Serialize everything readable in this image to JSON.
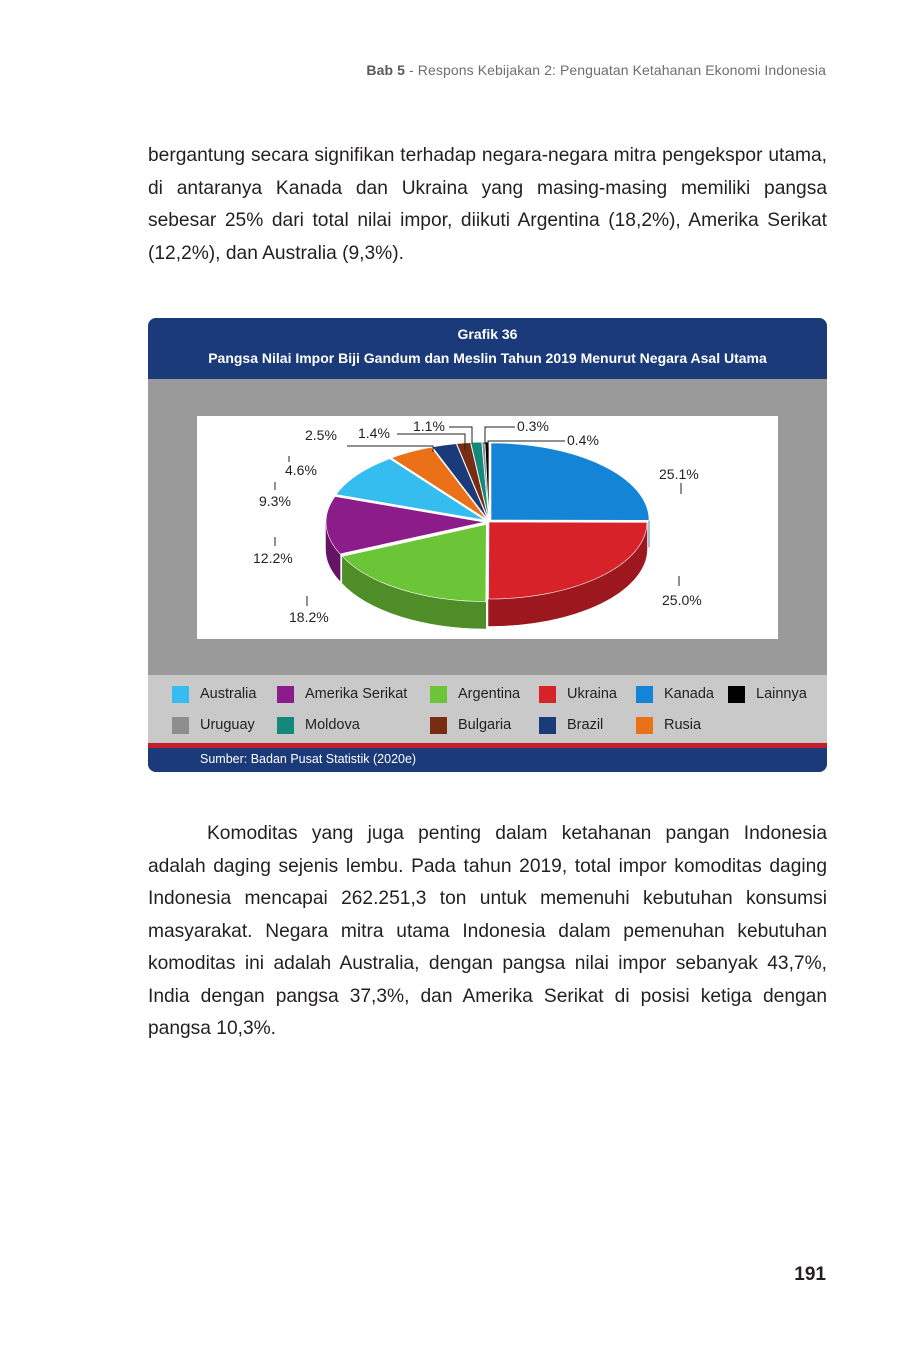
{
  "header": {
    "chapter": "Bab 5",
    "separator": " - ",
    "title": "Respons Kebijakan 2: Penguatan Ketahanan Ekonomi Indonesia"
  },
  "paragraphs": [
    "bergantung secara signifikan terhadap negara-negara mitra pengekspor utama, di antaranya Kanada dan Ukraina yang masing-masing memiliki pangsa sebesar 25% dari total nilai impor, diikuti Argentina (18,2%), Amerika Serikat (12,2%), dan Australia (9,3%).",
    "Komoditas yang juga penting dalam ketahanan pangan Indonesia adalah daging sejenis lembu. Pada tahun 2019, total impor komoditas daging Indonesia mencapai 262.251,3 ton untuk memenuhi kebutuhan konsumsi masyarakat. Negara mitra utama Indonesia dalam pemenuhan kebutuhan komoditas ini adalah Australia, dengan pangsa nilai impor sebanyak 43,7%, India dengan pangsa 37,3%, dan Amerika Serikat di posisi ketiga dengan pangsa 10,3%."
  ],
  "figure": {
    "label": "Grafik 36",
    "title": "Pangsa Nilai Impor Biji Gandum dan Meslin Tahun 2019 Menurut Negara Asal Utama",
    "source": "Sumber: Badan Pusat Statistik (2020e)"
  },
  "chart_data": {
    "type": "pie",
    "style": "3d-exploded",
    "legend_position": "bottom",
    "slices": [
      {
        "name": "Kanada",
        "value": 25.1,
        "label": "25.1%",
        "color": "#1485d6"
      },
      {
        "name": "Ukraina",
        "value": 25.0,
        "label": "25.0%",
        "color": "#d8222a"
      },
      {
        "name": "Argentina",
        "value": 18.2,
        "label": "18.2%",
        "color": "#6cc437"
      },
      {
        "name": "Amerika Serikat",
        "value": 12.2,
        "label": "12.2%",
        "color": "#8c1c8a"
      },
      {
        "name": "Australia",
        "value": 9.3,
        "label": "9.3%",
        "color": "#35bdf0"
      },
      {
        "name": "Rusia",
        "value": 4.6,
        "label": "4.6%",
        "color": "#ea7118"
      },
      {
        "name": "Brazil",
        "value": 2.5,
        "label": "2.5%",
        "color": "#1b3a7a"
      },
      {
        "name": "Bulgaria",
        "value": 1.4,
        "label": "1.4%",
        "color": "#7a2c12"
      },
      {
        "name": "Moldova",
        "value": 1.1,
        "label": "1.1%",
        "color": "#12897a"
      },
      {
        "name": "Uruguay",
        "value": 0.3,
        "label": "0.3%",
        "color": "#8e8e8e"
      },
      {
        "name": "Lainnya",
        "value": 0.4,
        "label": "0.4%",
        "color": "#000000"
      }
    ],
    "legend": [
      "Australia",
      "Amerika Serikat",
      "Argentina",
      "Ukraina",
      "Kanada",
      "Lainnya",
      "Uruguay",
      "Moldova",
      "Bulgaria",
      "Brazil",
      "Rusia"
    ]
  },
  "page_number": "191"
}
